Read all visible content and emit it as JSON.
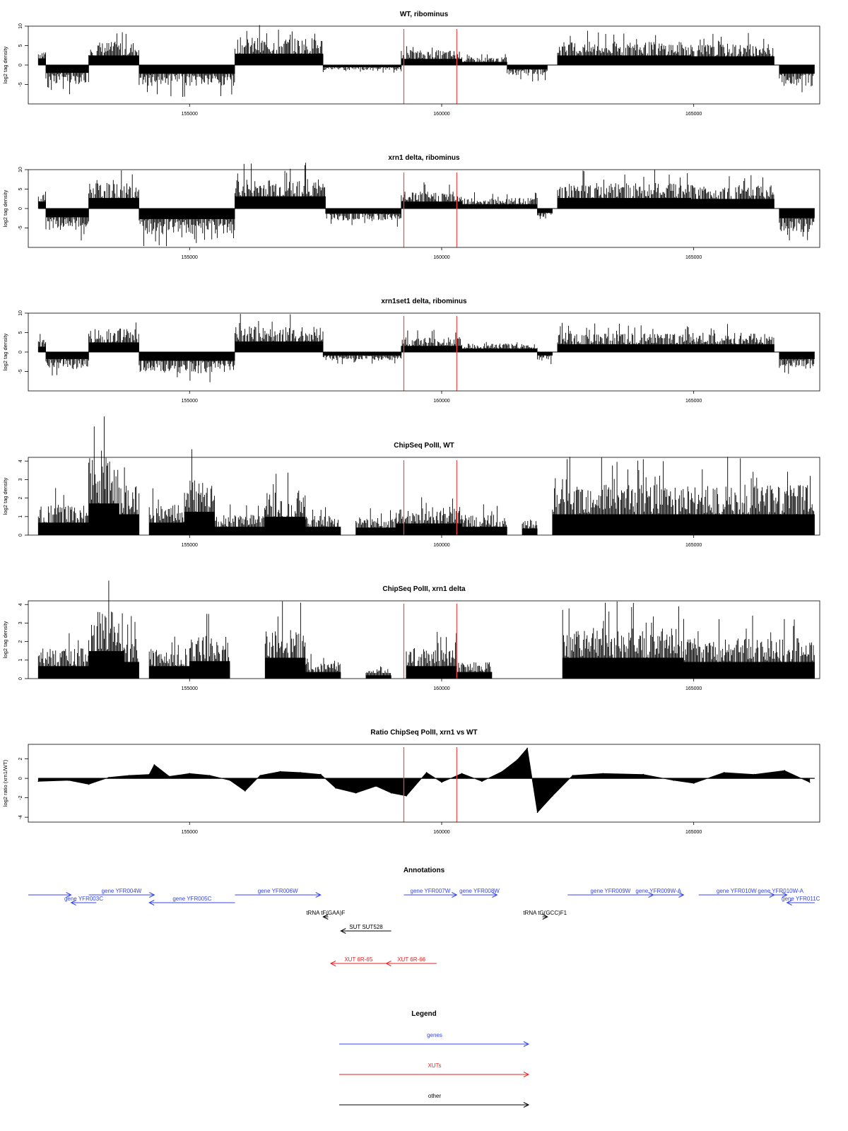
{
  "chart_data": [
    {
      "type": "bar",
      "title": "WT, ribominus",
      "ylabel": "log2 tag density",
      "xlim": [
        151800,
        167500
      ],
      "ylim": [
        -10,
        10
      ],
      "yticks": [
        -5,
        0,
        5,
        10
      ],
      "xticks": [
        155000,
        160000,
        165000
      ],
      "markers": [
        159250,
        160300
      ],
      "segments": [
        {
          "x0": 152000,
          "x1": 152150,
          "y": 3.8
        },
        {
          "x0": 152150,
          "x1": 153000,
          "y": -4.5
        },
        {
          "x0": 153000,
          "x1": 154000,
          "y": 5.5
        },
        {
          "x0": 154000,
          "x1": 155900,
          "y": -5.0
        },
        {
          "x0": 155900,
          "x1": 157650,
          "y": 6.5
        },
        {
          "x0": 157650,
          "x1": 159200,
          "y": -1.2
        },
        {
          "x0": 159200,
          "x1": 160400,
          "y": 3.5
        },
        {
          "x0": 160400,
          "x1": 161300,
          "y": 1.8
        },
        {
          "x0": 161300,
          "x1": 162100,
          "y": -2.5
        },
        {
          "x0": 162300,
          "x1": 164950,
          "y": 5.5
        },
        {
          "x0": 164950,
          "x1": 166600,
          "y": 5.0
        },
        {
          "x0": 166700,
          "x1": 167400,
          "y": -5.0
        }
      ]
    },
    {
      "type": "bar",
      "title": "xrn1 delta, ribominus",
      "ylabel": "log2 tag density",
      "xlim": [
        151800,
        167500
      ],
      "ylim": [
        -10,
        10
      ],
      "yticks": [
        -5,
        0,
        5,
        10
      ],
      "xticks": [
        155000,
        160000,
        165000
      ],
      "markers": [
        159250,
        160300
      ],
      "segments": [
        {
          "x0": 152000,
          "x1": 152150,
          "y": 4.0
        },
        {
          "x0": 152150,
          "x1": 153000,
          "y": -5.0
        },
        {
          "x0": 153000,
          "x1": 154000,
          "y": 6.0
        },
        {
          "x0": 154000,
          "x1": 155900,
          "y": -6.0
        },
        {
          "x0": 155900,
          "x1": 157700,
          "y": 7.0
        },
        {
          "x0": 157700,
          "x1": 159200,
          "y": -3.0
        },
        {
          "x0": 159200,
          "x1": 160400,
          "y": 4.0
        },
        {
          "x0": 160400,
          "x1": 161900,
          "y": 2.5
        },
        {
          "x0": 161900,
          "x1": 162200,
          "y": -2.5
        },
        {
          "x0": 162300,
          "x1": 164950,
          "y": 6.0
        },
        {
          "x0": 164950,
          "x1": 166600,
          "y": 5.5
        },
        {
          "x0": 166700,
          "x1": 167400,
          "y": -5.5
        }
      ]
    },
    {
      "type": "bar",
      "title": "xrn1set1 delta, ribominus",
      "ylabel": "log2 tag density",
      "xlim": [
        151800,
        167500
      ],
      "ylim": [
        -10,
        10
      ],
      "yticks": [
        -5,
        0,
        5,
        10
      ],
      "xticks": [
        155000,
        160000,
        165000
      ],
      "markers": [
        159250,
        160300
      ],
      "segments": [
        {
          "x0": 152000,
          "x1": 152150,
          "y": 3.0
        },
        {
          "x0": 152150,
          "x1": 153000,
          "y": -4.0
        },
        {
          "x0": 153000,
          "x1": 154000,
          "y": 5.5
        },
        {
          "x0": 154000,
          "x1": 155900,
          "y": -5.0
        },
        {
          "x0": 155900,
          "x1": 157650,
          "y": 6.0
        },
        {
          "x0": 157650,
          "x1": 159200,
          "y": -2.0
        },
        {
          "x0": 159200,
          "x1": 160400,
          "y": 3.5
        },
        {
          "x0": 160400,
          "x1": 161900,
          "y": 2.0
        },
        {
          "x0": 161900,
          "x1": 162200,
          "y": -2.0
        },
        {
          "x0": 162300,
          "x1": 164950,
          "y": 4.5
        },
        {
          "x0": 164950,
          "x1": 166600,
          "y": 4.5
        },
        {
          "x0": 166700,
          "x1": 167400,
          "y": -4.0
        }
      ]
    },
    {
      "type": "bar",
      "title": "ChipSeq PolII, WT",
      "ylabel": "log2 tag density",
      "xlim": [
        151800,
        167500
      ],
      "ylim": [
        0,
        4.2
      ],
      "yticks": [
        0,
        1,
        2,
        3,
        4
      ],
      "xticks": [
        155000,
        160000,
        165000
      ],
      "markers": [
        159250,
        160300
      ],
      "segments": [
        {
          "x0": 152000,
          "x1": 153000,
          "y": 1.5
        },
        {
          "x0": 153000,
          "x1": 153600,
          "y": 3.8
        },
        {
          "x0": 153600,
          "x1": 154000,
          "y": 2.5
        },
        {
          "x0": 154200,
          "x1": 154900,
          "y": 1.5
        },
        {
          "x0": 154900,
          "x1": 155500,
          "y": 2.8
        },
        {
          "x0": 155500,
          "x1": 156500,
          "y": 1.0
        },
        {
          "x0": 156500,
          "x1": 157300,
          "y": 2.2
        },
        {
          "x0": 157300,
          "x1": 158000,
          "y": 1.0
        },
        {
          "x0": 158300,
          "x1": 159100,
          "y": 0.9
        },
        {
          "x0": 159100,
          "x1": 160400,
          "y": 1.4
        },
        {
          "x0": 160400,
          "x1": 161300,
          "y": 1.0
        },
        {
          "x0": 161600,
          "x1": 161900,
          "y": 0.8
        },
        {
          "x0": 162200,
          "x1": 167400,
          "y": 2.5
        }
      ]
    },
    {
      "type": "bar",
      "title": "ChipSeq PolII, xrn1 delta",
      "ylabel": "log2 tag density",
      "xlim": [
        151800,
        167500
      ],
      "ylim": [
        0,
        4.2
      ],
      "yticks": [
        0,
        1,
        2,
        3,
        4
      ],
      "xticks": [
        155000,
        160000,
        165000
      ],
      "markers": [
        159250,
        160300
      ],
      "segments": [
        {
          "x0": 152000,
          "x1": 153000,
          "y": 1.5
        },
        {
          "x0": 153000,
          "x1": 153700,
          "y": 3.3
        },
        {
          "x0": 153700,
          "x1": 154000,
          "y": 2.0
        },
        {
          "x0": 154200,
          "x1": 155000,
          "y": 1.5
        },
        {
          "x0": 155000,
          "x1": 155800,
          "y": 2.1
        },
        {
          "x0": 156500,
          "x1": 157300,
          "y": 2.5
        },
        {
          "x0": 157300,
          "x1": 158000,
          "y": 0.8
        },
        {
          "x0": 158500,
          "x1": 159000,
          "y": 0.4
        },
        {
          "x0": 159300,
          "x1": 160300,
          "y": 1.5
        },
        {
          "x0": 160300,
          "x1": 161000,
          "y": 0.8
        },
        {
          "x0": 162400,
          "x1": 164800,
          "y": 2.5
        },
        {
          "x0": 164800,
          "x1": 167400,
          "y": 2.0
        }
      ]
    },
    {
      "type": "area",
      "title": "Ratio ChipSeq PolII, xrn1 vs WT",
      "ylabel": "log2 ratio (xrn1/WT)",
      "xlim": [
        151800,
        167500
      ],
      "ylim": [
        -4.5,
        3.5
      ],
      "yticks": [
        -4,
        -2,
        0,
        2
      ],
      "xticks": [
        155000,
        160000,
        165000
      ],
      "markers": [
        159250,
        160300
      ],
      "x": [
        152000,
        152600,
        153000,
        153400,
        153800,
        154200,
        154300,
        154600,
        155000,
        155400,
        155800,
        156100,
        156400,
        156800,
        157200,
        157600,
        157900,
        158300,
        158700,
        159000,
        159300,
        159700,
        160000,
        160400,
        160800,
        161200,
        161500,
        161700,
        161900,
        162200,
        162600,
        163200,
        164000,
        164600,
        165000,
        165600,
        166200,
        166800,
        167300
      ],
      "y": [
        -0.3,
        -0.2,
        -0.6,
        0.1,
        0.3,
        0.4,
        1.4,
        0.2,
        0.5,
        0.3,
        -0.2,
        -1.3,
        0.3,
        0.7,
        0.6,
        0.4,
        -1.0,
        -1.5,
        -0.8,
        -1.5,
        -1.8,
        0.6,
        -0.4,
        0.5,
        -0.3,
        0.7,
        1.9,
        3.1,
        -3.5,
        -1.8,
        0.3,
        0.5,
        0.4,
        -0.2,
        -0.5,
        0.6,
        0.4,
        0.8,
        -0.4
      ]
    }
  ],
  "annotations": {
    "title": "Annotations",
    "xlim": [
      151800,
      167500
    ],
    "features": [
      {
        "x0": 151800,
        "x1": 152650,
        "dir": "right",
        "class": "genes",
        "label": "",
        "row": 0
      },
      {
        "x0": 152650,
        "x1": 153150,
        "dir": "left",
        "class": "genes",
        "label": "gene YFR003C",
        "row": 1
      },
      {
        "x0": 153000,
        "x1": 154300,
        "dir": "right",
        "class": "genes",
        "label": "gene YFR004W",
        "row": 0
      },
      {
        "x0": 154200,
        "x1": 155900,
        "dir": "left",
        "class": "genes",
        "label": "gene YFR005C",
        "row": 1
      },
      {
        "x0": 155900,
        "x1": 157600,
        "dir": "right",
        "class": "genes",
        "label": "gene YFR006W",
        "row": 0
      },
      {
        "x0": 157650,
        "x1": 157750,
        "dir": "left",
        "class": "other",
        "label": "tRNA tF(GAA)F",
        "row": 2
      },
      {
        "x0": 158000,
        "x1": 159000,
        "dir": "left",
        "class": "other",
        "label": "SUT SUT528",
        "row": 3
      },
      {
        "x0": 157800,
        "x1": 158900,
        "dir": "left",
        "class": "xuts",
        "label": "XUT 6R-65",
        "row": 4
      },
      {
        "x0": 158900,
        "x1": 159900,
        "dir": "left",
        "class": "xuts",
        "label": "XUT 6R-66",
        "row": 4
      },
      {
        "x0": 159250,
        "x1": 160300,
        "dir": "right",
        "class": "genes",
        "label": "gene YFR007W",
        "row": 0
      },
      {
        "x0": 160400,
        "x1": 161100,
        "dir": "right",
        "class": "genes",
        "label": "gene YFR008W",
        "row": 0
      },
      {
        "x0": 162000,
        "x1": 162100,
        "dir": "right",
        "class": "other",
        "label": "tRNA tG(GCC)F1",
        "row": 2
      },
      {
        "x0": 162500,
        "x1": 164200,
        "dir": "right",
        "class": "genes",
        "label": "gene YFR009W",
        "row": 0
      },
      {
        "x0": 163800,
        "x1": 164800,
        "dir": "right",
        "class": "genes",
        "label": "gene YFR009W-A",
        "row": 0
      },
      {
        "x0": 165100,
        "x1": 166600,
        "dir": "right",
        "class": "genes",
        "label": "gene YFR010W",
        "row": 0
      },
      {
        "x0": 166600,
        "x1": 166850,
        "dir": "right",
        "class": "genes",
        "label": "gene YFR010W-A",
        "row": 0
      },
      {
        "x0": 166850,
        "x1": 167400,
        "dir": "left",
        "class": "genes",
        "label": "gene YFR011C",
        "row": 1
      }
    ]
  },
  "legend": {
    "title": "Legend",
    "items": [
      {
        "label": "genes",
        "color": "#3344ee"
      },
      {
        "label": "XUTs",
        "color": "#ee2222"
      },
      {
        "label": "other",
        "color": "#000000"
      }
    ]
  },
  "colors": {
    "genes": "#3344ee",
    "xuts": "#ee2222",
    "other": "#000000",
    "marker": "#ff4444"
  }
}
